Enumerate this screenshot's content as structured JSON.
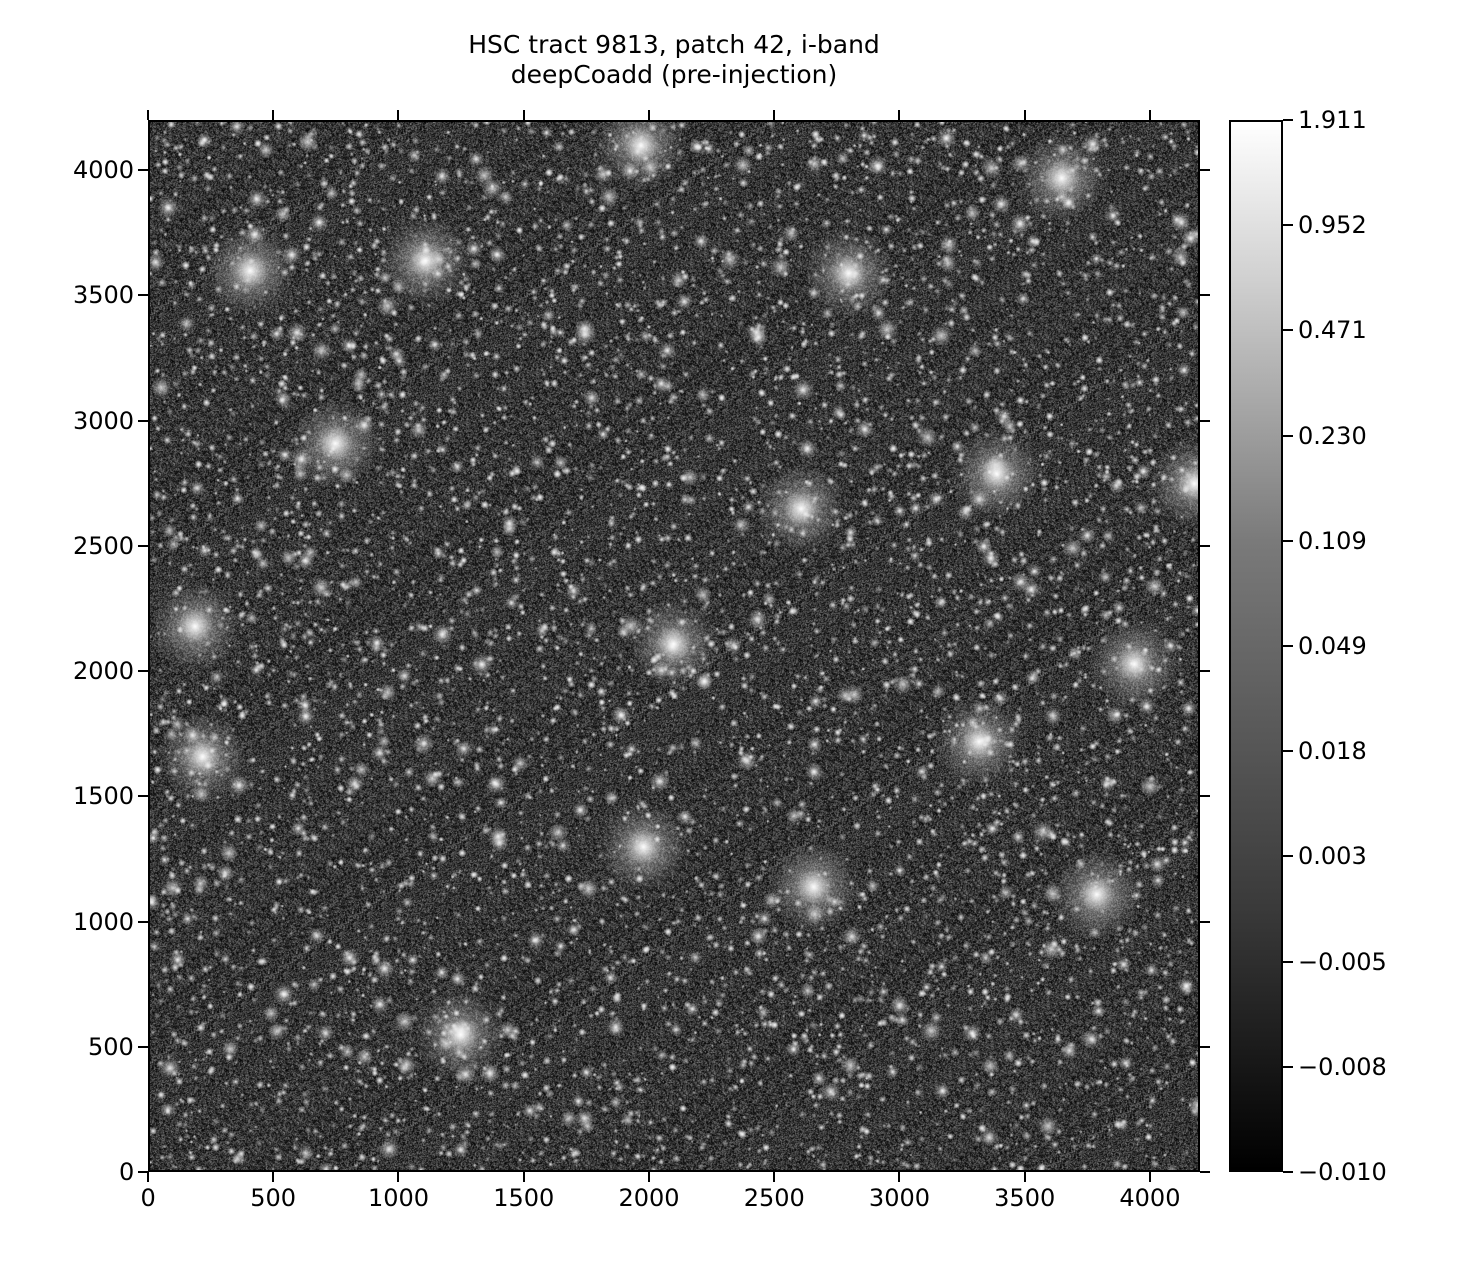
{
  "chart_data": {
    "type": "heatmap",
    "title": "HSC tract 9813, patch 42, i-band\ndeepCoadd (pre-injection)",
    "title_lines": [
      "HSC tract 9813, patch 42, i-band",
      "deepCoadd (pre-injection)"
    ],
    "xlabel": "",
    "ylabel": "",
    "xlim": [
      0,
      4200
    ],
    "ylim": [
      0,
      4200
    ],
    "x_ticks": [
      "0",
      "500",
      "1000",
      "1500",
      "2000",
      "2500",
      "3000",
      "3500",
      "4000"
    ],
    "y_ticks": [
      "0",
      "500",
      "1000",
      "1500",
      "2000",
      "2500",
      "3000",
      "3500",
      "4000"
    ],
    "colormap": "gray",
    "colorbar": {
      "range": [
        -0.01,
        1.911
      ],
      "scale": "nonlinear (asinh-like)",
      "ticks": [
        "1.911",
        "0.952",
        "0.471",
        "0.230",
        "0.109",
        "0.049",
        "0.018",
        "0.003",
        "−0.005",
        "−0.008",
        "−0.010"
      ]
    },
    "grid": false,
    "legend": "none"
  }
}
